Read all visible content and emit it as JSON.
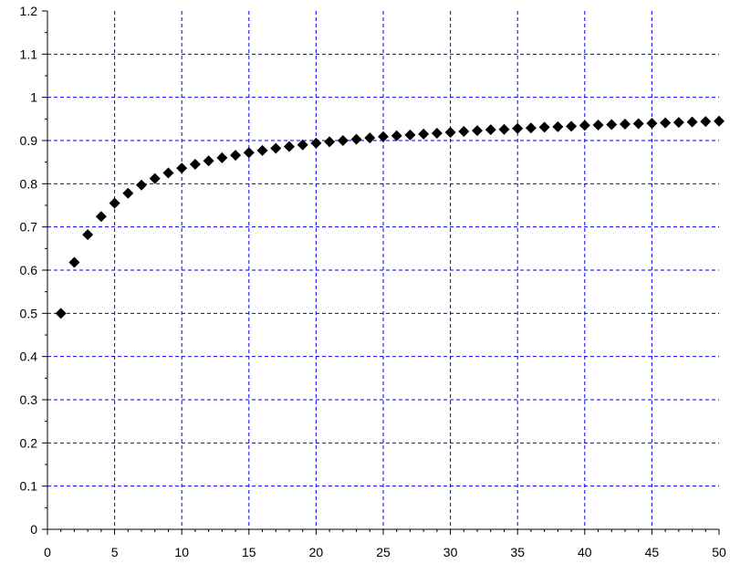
{
  "chart_data": {
    "type": "scatter",
    "title": "",
    "xlabel": "",
    "ylabel": "",
    "xlim": [
      0,
      50
    ],
    "ylim": [
      0,
      1.2
    ],
    "grid": true,
    "x_ticks": [
      "0",
      "5",
      "10",
      "15",
      "20",
      "25",
      "30",
      "35",
      "40",
      "45",
      "50"
    ],
    "y_ticks": [
      "0",
      "0.1",
      "0.2",
      "0.3",
      "0.4",
      "0.5",
      "0.6",
      "0.7",
      "0.8",
      "0.9",
      "1",
      "1.1",
      "1.2"
    ],
    "series": [
      {
        "marker": "diamond",
        "color": "#000000",
        "x": [
          1,
          2,
          3,
          4,
          5,
          6,
          7,
          8,
          9,
          10,
          11,
          12,
          13,
          14,
          15,
          16,
          17,
          18,
          19,
          20,
          21,
          22,
          23,
          24,
          25,
          26,
          27,
          28,
          29,
          30,
          31,
          32,
          33,
          34,
          35,
          36,
          37,
          38,
          39,
          40,
          41,
          42,
          43,
          44,
          45,
          46,
          47,
          48,
          49,
          50
        ],
        "y": [
          0.5,
          0.618,
          0.682,
          0.724,
          0.755,
          0.778,
          0.797,
          0.812,
          0.825,
          0.836,
          0.845,
          0.853,
          0.86,
          0.866,
          0.872,
          0.877,
          0.882,
          0.886,
          0.89,
          0.894,
          0.897,
          0.9,
          0.903,
          0.906,
          0.909,
          0.911,
          0.913,
          0.915,
          0.917,
          0.919,
          0.921,
          0.923,
          0.925,
          0.926,
          0.928,
          0.929,
          0.931,
          0.932,
          0.933,
          0.935,
          0.936,
          0.937,
          0.938,
          0.939,
          0.94,
          0.941,
          0.942,
          0.943,
          0.944,
          0.945
        ]
      }
    ]
  },
  "colors": {
    "grid": "#0000ff",
    "axis": "#000000",
    "marker": "#000000",
    "background": "#ffffff"
  }
}
